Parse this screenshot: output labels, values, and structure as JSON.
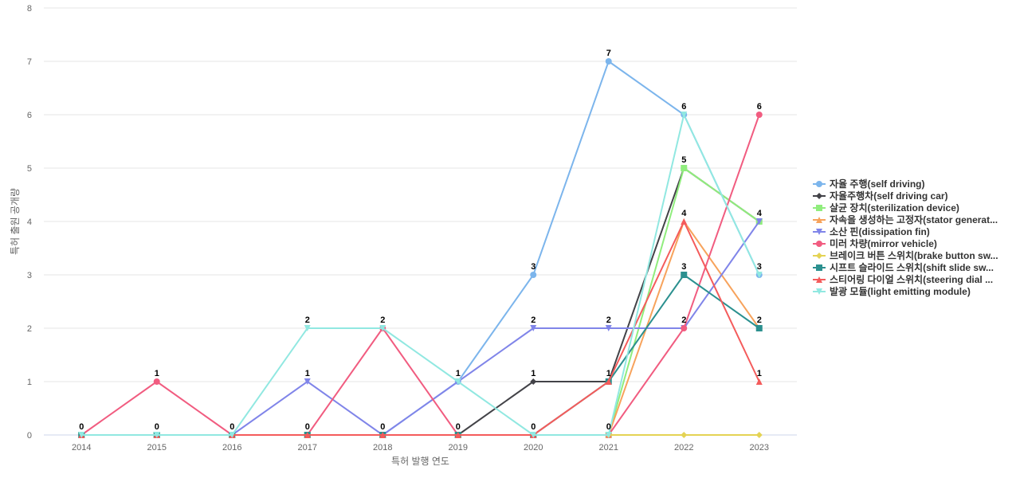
{
  "chart_data": {
    "type": "line",
    "title": "",
    "xlabel": "특허 발행 연도",
    "ylabel": "특허 출원 공개량",
    "x": [
      "2014",
      "2015",
      "2016",
      "2017",
      "2018",
      "2019",
      "2020",
      "2021",
      "2022",
      "2023"
    ],
    "ylim": [
      0,
      8
    ],
    "yticks": [
      0,
      1,
      2,
      3,
      4,
      5,
      6,
      7,
      8
    ],
    "grid": true,
    "legend_position": "right",
    "series": [
      {
        "name": "자율 주행(self driving)",
        "color": "#7cb5ec",
        "marker": "circle",
        "values": [
          0,
          0,
          0,
          0,
          0,
          1,
          3,
          7,
          6,
          3
        ]
      },
      {
        "name": "자율주행차(self driving car)",
        "color": "#434348",
        "marker": "diamond",
        "values": [
          0,
          0,
          0,
          0,
          0,
          0,
          1,
          1,
          5,
          4
        ]
      },
      {
        "name": "살균 장치(sterilization device)",
        "color": "#90ed7d",
        "marker": "square",
        "values": [
          0,
          0,
          0,
          0,
          0,
          0,
          0,
          0,
          5,
          4
        ]
      },
      {
        "name": "자속을 생성하는 고정자(stator generat...",
        "color": "#f7a35c",
        "marker": "triangle",
        "values": [
          0,
          0,
          0,
          0,
          0,
          0,
          0,
          0,
          4,
          2
        ]
      },
      {
        "name": "소산 핀(dissipation fin)",
        "color": "#8085e9",
        "marker": "triangle-down",
        "values": [
          0,
          0,
          0,
          1,
          0,
          1,
          2,
          2,
          2,
          4
        ]
      },
      {
        "name": "미러 차량(mirror vehicle)",
        "color": "#f15c80",
        "marker": "circle",
        "values": [
          0,
          1,
          0,
          0,
          2,
          0,
          0,
          0,
          2,
          6
        ]
      },
      {
        "name": "브레이크 버튼 스위치(brake button sw...",
        "color": "#e4d354",
        "marker": "diamond",
        "values": [
          0,
          0,
          0,
          0,
          0,
          0,
          0,
          0,
          0,
          0
        ]
      },
      {
        "name": "시프트 슬라이드 스위치(shift slide sw...",
        "color": "#2b908f",
        "marker": "square",
        "values": [
          0,
          0,
          0,
          0,
          0,
          0,
          0,
          1,
          3,
          2
        ]
      },
      {
        "name": "스티어링 다이얼 스위치(steering dial ...",
        "color": "#f45b5b",
        "marker": "triangle",
        "values": [
          0,
          0,
          0,
          0,
          0,
          0,
          0,
          1,
          4,
          1
        ]
      },
      {
        "name": "발광 모듈(light emitting module)",
        "color": "#91e8e1",
        "marker": "triangle-down",
        "values": [
          0,
          0,
          0,
          2,
          2,
          1,
          0,
          0,
          6,
          3
        ]
      }
    ],
    "data_labels": [
      {
        "x": "2014",
        "value": 0
      },
      {
        "x": "2015",
        "value": 1
      },
      {
        "x": "2015",
        "value": 0
      },
      {
        "x": "2016",
        "value": 0
      },
      {
        "x": "2017",
        "value": 2
      },
      {
        "x": "2017",
        "value": 1
      },
      {
        "x": "2017",
        "value": 0
      },
      {
        "x": "2018",
        "value": 2
      },
      {
        "x": "2018",
        "value": 0
      },
      {
        "x": "2019",
        "value": 1
      },
      {
        "x": "2019",
        "value": 0
      },
      {
        "x": "2020",
        "value": 3
      },
      {
        "x": "2020",
        "value": 2
      },
      {
        "x": "2020",
        "value": 1
      },
      {
        "x": "2020",
        "value": 0
      },
      {
        "x": "2021",
        "value": 7
      },
      {
        "x": "2021",
        "value": 2
      },
      {
        "x": "2021",
        "value": 1
      },
      {
        "x": "2021",
        "value": 0
      },
      {
        "x": "2022",
        "value": 6
      },
      {
        "x": "2022",
        "value": 5
      },
      {
        "x": "2022",
        "value": 4
      },
      {
        "x": "2022",
        "value": 3
      },
      {
        "x": "2022",
        "value": 2
      },
      {
        "x": "2023",
        "value": 6
      },
      {
        "x": "2023",
        "value": 4
      },
      {
        "x": "2023",
        "value": 3
      },
      {
        "x": "2023",
        "value": 2
      },
      {
        "x": "2023",
        "value": 1
      }
    ]
  }
}
